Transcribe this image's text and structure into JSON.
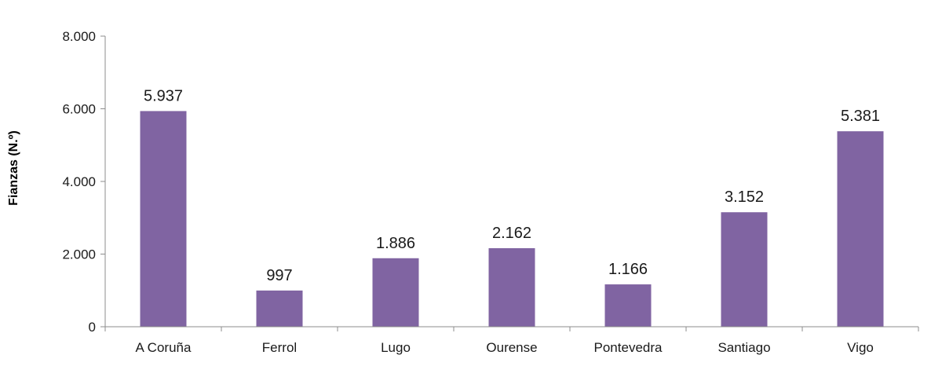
{
  "colors": {
    "bar": "#8064A2",
    "axis": "#8c8c8c",
    "text": "#1a1a1a"
  },
  "chart_data": {
    "type": "bar",
    "title": "",
    "xlabel": "",
    "ylabel": "Fianzas (N.º)",
    "categories": [
      "A Coruña",
      "Ferrol",
      "Lugo",
      "Ourense",
      "Pontevedra",
      "Santiago",
      "Vigo"
    ],
    "values": [
      5937,
      997,
      1886,
      2162,
      1166,
      3152,
      5381
    ],
    "value_labels": [
      "5.937",
      "997",
      "1.886",
      "2.162",
      "1.166",
      "3.152",
      "5.381"
    ],
    "ylim": [
      0,
      8000
    ],
    "yticks": [
      0,
      2000,
      4000,
      6000,
      8000
    ],
    "ytick_labels": [
      "0",
      "2.000",
      "4.000",
      "6.000",
      "8.000"
    ],
    "grid": false,
    "legend": "none"
  }
}
